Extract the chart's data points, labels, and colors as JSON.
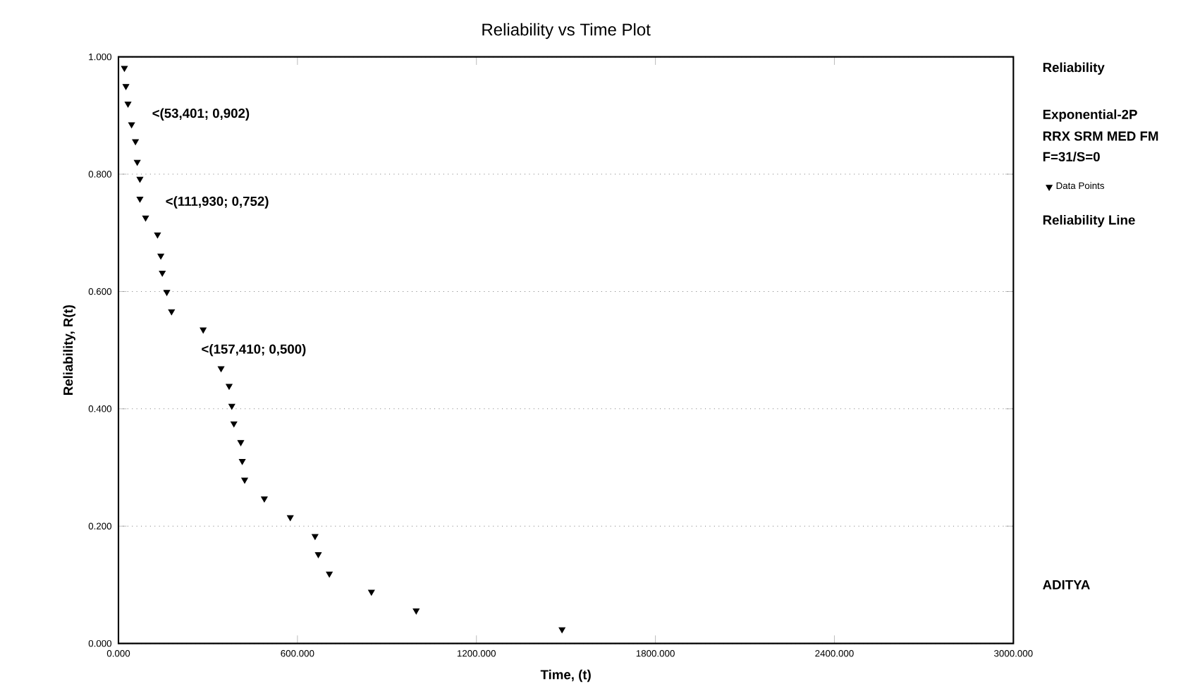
{
  "chart_data": {
    "type": "scatter",
    "title": "Reliability vs Time Plot",
    "xlabel": "Time, (t)",
    "ylabel": "Reliability, R(t)",
    "x": [
      20,
      25,
      32,
      44,
      57,
      63,
      72,
      72,
      91,
      131,
      142,
      147,
      162,
      178,
      284,
      344,
      371,
      380,
      387,
      410,
      415,
      423,
      489,
      576,
      659,
      670,
      707,
      848,
      998,
      1487
    ],
    "series": [
      {
        "name": "Data Points",
        "color": "#000000",
        "values": [
          0.981,
          0.95,
          0.92,
          0.885,
          0.856,
          0.821,
          0.792,
          0.758,
          0.726,
          0.697,
          0.661,
          0.632,
          0.599,
          0.566,
          0.535,
          0.469,
          0.439,
          0.405,
          0.375,
          0.343,
          0.311,
          0.279,
          0.247,
          0.215,
          0.183,
          0.152,
          0.119,
          0.088,
          0.056,
          0.024
        ]
      }
    ],
    "xlim": [
      0,
      3000
    ],
    "xticks": [
      {
        "value": 0,
        "label": "0.000"
      },
      {
        "value": 600,
        "label": "600.000"
      },
      {
        "value": 1200,
        "label": "1200.000"
      },
      {
        "value": 1800,
        "label": "1800.000"
      },
      {
        "value": 2400,
        "label": "2400.000"
      },
      {
        "value": 3000,
        "label": "3000.000"
      }
    ],
    "ylim": [
      0,
      1
    ],
    "yticks": [
      {
        "value": 0,
        "label": "0.000"
      },
      {
        "value": 0.2,
        "label": "0.200"
      },
      {
        "value": 0.4,
        "label": "0.400"
      },
      {
        "value": 0.6,
        "label": "0.600"
      },
      {
        "value": 0.8,
        "label": "0.800"
      },
      {
        "value": 1,
        "label": "1.000"
      }
    ],
    "grid": "y",
    "marker": "triangle",
    "legend": "right",
    "annotations": [
      "<(53,401; 0,902)",
      "<(111,930; 0,752)",
      "<(157,410; 0,500)",
      "Reliability",
      "Exponential-2P",
      "RRX SRM MED FM",
      "F=31/S=0",
      "Reliability Line",
      "ADITYA"
    ]
  }
}
